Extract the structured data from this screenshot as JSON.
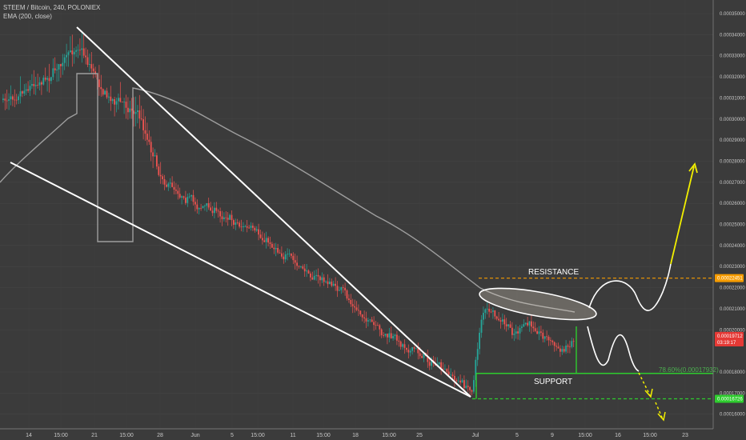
{
  "header": {
    "symbol_line": "STEEM / Bitcoin, 240, POLONIEX",
    "indicator_line": "EMA (200, close)"
  },
  "chart_data": {
    "type": "candlestick",
    "symbol": "STEEM / Bitcoin",
    "interval": "240",
    "exchange": "POLONIEX",
    "indicator": "EMA (200, close)",
    "ylim": [
      0.00015528,
      0.00035725
    ],
    "y_ticks": [
      "0.00035000",
      "0.00034000",
      "0.00033000",
      "0.00032000",
      "0.00031000",
      "0.00030000",
      "0.00029000",
      "0.00028000",
      "0.00027000",
      "0.00026000",
      "0.00025000",
      "0.00024000",
      "0.00023000",
      "0.00022000",
      "0.00021000",
      "0.00020000",
      "0.00018000",
      "0.00017000",
      "0.00016000"
    ],
    "x_ticks": [
      "14",
      "15:00",
      "21",
      "15:00",
      "28",
      "Jun",
      "5",
      "15:00",
      "11",
      "15:00",
      "18",
      "15:00",
      "25",
      "Jul",
      "5",
      "9",
      "15:00",
      "16",
      "15:00",
      "23"
    ],
    "price_tags": [
      {
        "value": 0.00022451,
        "label": "0.00022451",
        "color": "#f59b00"
      },
      {
        "value": 0.00019712,
        "label": "0.00019712",
        "color": "#e53935"
      },
      {
        "value": 0.000194,
        "label": "03:19:17",
        "color": "#e53935"
      },
      {
        "value": 0.00016726,
        "label": "0.00016726",
        "color": "#2ecc2e"
      }
    ],
    "annotations": {
      "resistance": "RESISTANCE",
      "support": "SUPPORT",
      "fib": "78.60%(0.00017932)"
    },
    "levels": {
      "resistance": 0.00022451,
      "support": 0.00017932,
      "low": 0.00016726
    },
    "colors": {
      "up": "#26a69a",
      "down": "#ef5350",
      "ema": "#9e9e9e",
      "resistance": "#f59b00",
      "support": "#2ecc2e",
      "projection_up": "#f2ef00"
    }
  }
}
